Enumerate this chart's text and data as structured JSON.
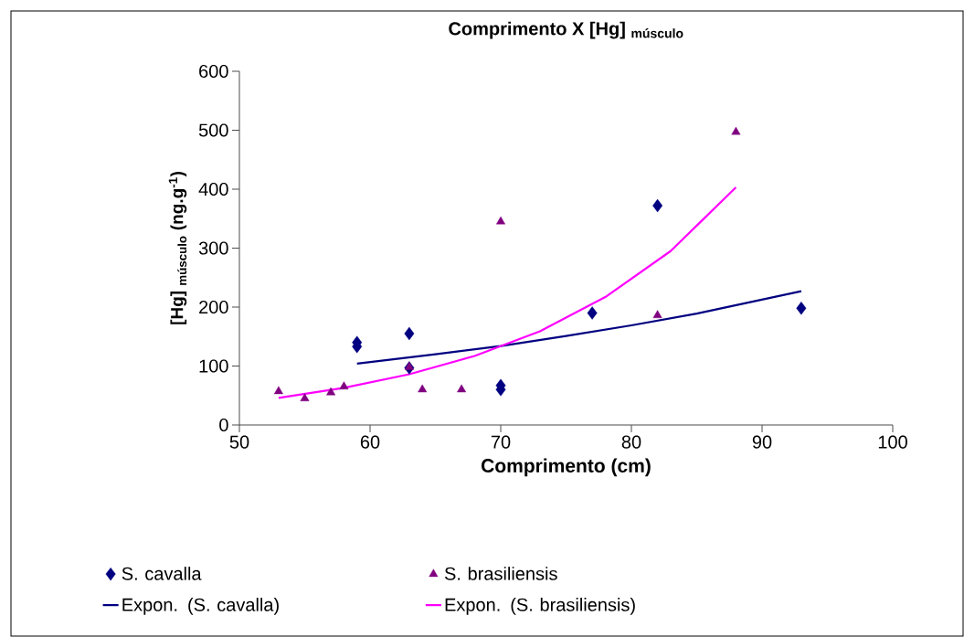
{
  "chart_data": {
    "type": "scatter",
    "title": "Comprimento X [Hg] $_{músculo}$",
    "xlabel": "Comprimento (cm)",
    "ylabel": "[Hg] $_{músculo}$ (ng.g$^{-1}$)",
    "xlim": [
      50,
      100
    ],
    "ylim": [
      0,
      600
    ],
    "xticks": [
      50,
      60,
      70,
      80,
      90,
      100
    ],
    "yticks": [
      0,
      100,
      200,
      300,
      400,
      500,
      600
    ],
    "grid": false,
    "legend": "bottom",
    "series": [
      {
        "name": "S. cavalla",
        "marker": "diamond",
        "color": "#000080",
        "x": [
          59,
          59,
          63,
          63,
          70,
          70,
          77,
          82,
          93
        ],
        "values": [
          140,
          133,
          155,
          97,
          67,
          60,
          190,
          372,
          198
        ]
      },
      {
        "name": "S. brasiliensis",
        "marker": "triangle",
        "color": "#800080",
        "x": [
          53,
          55,
          57,
          58,
          63,
          64,
          67,
          70,
          82,
          88
        ],
        "values": [
          57,
          45,
          55,
          65,
          98,
          60,
          60,
          345,
          186,
          497
        ]
      },
      {
        "name": "Expon. (S. cavalla)",
        "type": "line",
        "marker": "none",
        "color": "#000080",
        "x": [
          59,
          65,
          70,
          75,
          80,
          85,
          93
        ],
        "values": [
          104,
          120,
          134,
          151,
          169,
          189,
          227
        ]
      },
      {
        "name": "Expon. (S. brasiliensis)",
        "type": "line",
        "marker": "none",
        "color": "#ff00ff",
        "x": [
          53,
          58,
          63,
          68,
          73,
          78,
          83,
          88
        ],
        "values": [
          46,
          63,
          86,
          117,
          159,
          217,
          295,
          403
        ]
      }
    ]
  }
}
